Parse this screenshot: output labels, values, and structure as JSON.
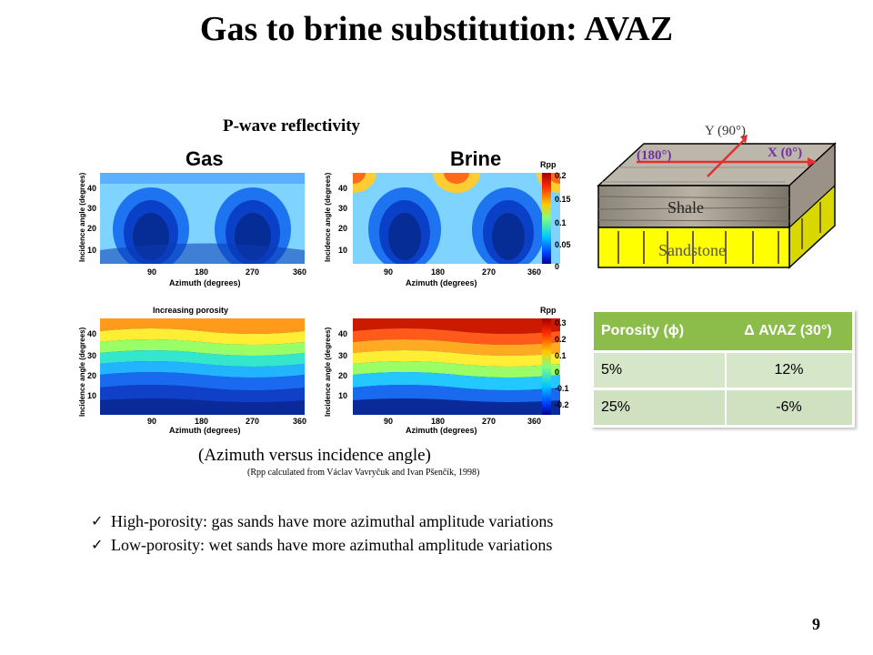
{
  "title": "Gas to brine substitution: AVAZ",
  "figure": {
    "heading": "P-wave reflectivity",
    "panels": [
      {
        "subtitle": "Gas"
      },
      {
        "subtitle": "Brine"
      },
      {
        "subtitle": "Increasing porosity"
      },
      {
        "subtitle": ""
      }
    ],
    "ylabel": "Incidence angle (degrees)",
    "xlabel": "Azimuth (degrees)",
    "xticks": [
      "90",
      "180",
      "270",
      "360"
    ],
    "yticks": [
      "40",
      "30",
      "20",
      "10"
    ],
    "colorbar_top": {
      "label": "Rpp",
      "ticks": [
        "0.2",
        "0.15",
        "0.1",
        "0.05",
        "0"
      ]
    },
    "colorbar_bottom": {
      "label": "Rpp",
      "ticks": [
        "0.3",
        "0.2",
        "0.1",
        "0",
        "-0.1",
        "-0.2"
      ]
    },
    "caption": "(Azimuth versus incidence angle)",
    "citation": "(Rpp calculated from Václav Vavryčuk  and Ivan Pšenčík, 1998)"
  },
  "block_diagram": {
    "y_axis": "Y (90°)",
    "x_axis": "X (0°)",
    "neg_x_axis": "(180°)",
    "top_layer": "Shale",
    "bottom_layer": "Sandstone"
  },
  "table": {
    "headers": [
      "Porosity (ϕ)",
      "Δ AVAZ (30°)"
    ],
    "rows": [
      [
        "5%",
        "12%"
      ],
      [
        "25%",
        "-6%"
      ]
    ]
  },
  "bullets": [
    "High-porosity: gas sands have more azimuthal amplitude variations",
    "Low-porosity: wet sands have more azimuthal amplitude variations"
  ],
  "page_number": "9",
  "colors": {
    "table_header": "#8cbc4a",
    "table_cell": "#cfe1c0",
    "axis_arrow": "#e03030",
    "axis_label": "#7030a0",
    "sandstone": "#ffff00"
  }
}
